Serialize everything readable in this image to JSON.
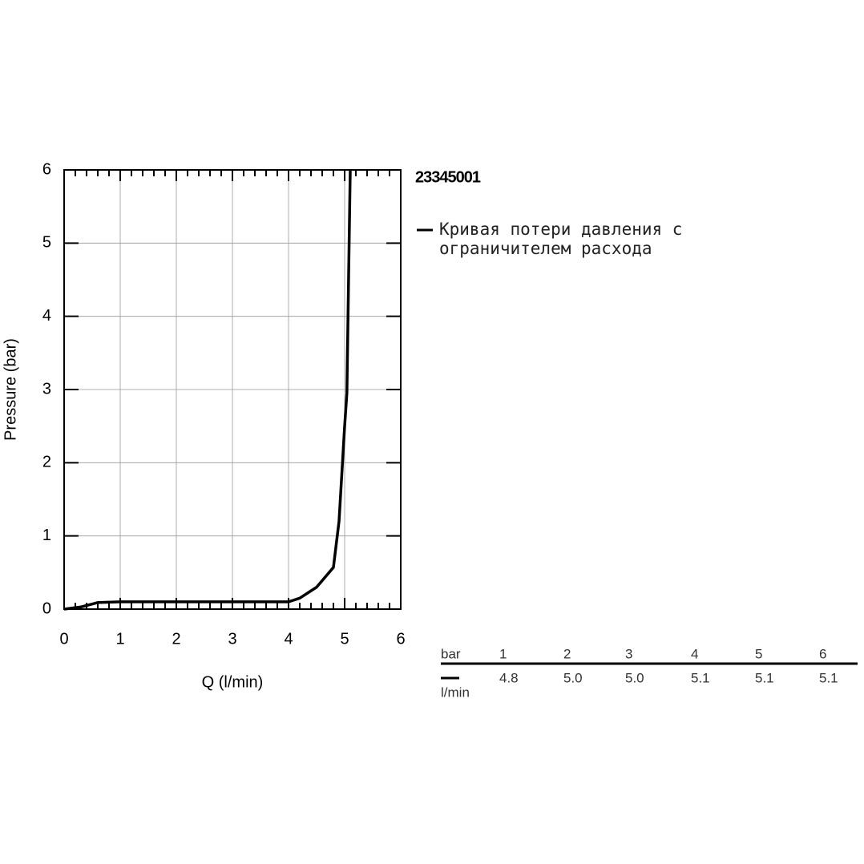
{
  "chart_data": {
    "type": "line",
    "title": "23345001",
    "xlabel": "Q (l/min)",
    "ylabel": "Pressure (bar)",
    "x": [
      0,
      0.3,
      0.6,
      1,
      2,
      3,
      4,
      4.2,
      4.5,
      4.8,
      4.9,
      5.0,
      5.04,
      5.07,
      5.1
    ],
    "series": [
      {
        "name": "Кривая потери давления с ограничителем расхода",
        "color": "#000000",
        "values": [
          0,
          0.03,
          0.09,
          0.1,
          0.1,
          0.1,
          0.1,
          0.15,
          0.3,
          0.57,
          1.2,
          2.5,
          2.95,
          4.5,
          6
        ]
      }
    ],
    "xlim": [
      0,
      6
    ],
    "ylim": [
      0,
      6
    ],
    "xticks": [
      0,
      1,
      2,
      3,
      4,
      5,
      6
    ],
    "yticks": [
      0,
      1,
      2,
      3,
      4,
      5,
      6
    ],
    "grid": true
  },
  "table": {
    "header": [
      "bar",
      "1",
      "2",
      "3",
      "4",
      "5",
      "6"
    ],
    "rows": [
      [
        "l/min",
        "4.8",
        "5.0",
        "5.0",
        "5.1",
        "5.1",
        "5.1"
      ]
    ]
  }
}
